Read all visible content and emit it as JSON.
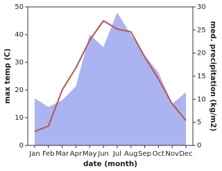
{
  "chart_data": {
    "type": "line-area",
    "categories": [
      "Jan",
      "Feb",
      "Mar",
      "Apr",
      "May",
      "Jun",
      "Jul",
      "Aug",
      "Sep",
      "Oct",
      "Nov",
      "Dec"
    ],
    "x_label": "date (month)",
    "y_label": "max temp (C)",
    "y2_label": "med. precipitation (kg/m2)",
    "ylim": [
      0,
      50
    ],
    "yticks": [
      0,
      10,
      20,
      30,
      40,
      50
    ],
    "y2lim": [
      0,
      30
    ],
    "y2ticks": [
      0,
      5,
      10,
      15,
      20,
      25,
      30
    ],
    "series": [
      {
        "name": "med. precipitation",
        "type": "area",
        "axis": "y2",
        "color": "#aab4f0",
        "values": [
          10.2,
          8.3,
          9.8,
          12.8,
          24,
          21.3,
          28.8,
          24,
          19.5,
          15.8,
          9,
          11.5
        ]
      },
      {
        "name": "max temp",
        "type": "line",
        "axis": "y",
        "color": "#c0504d",
        "values": [
          5,
          7,
          20,
          28,
          38,
          45,
          42,
          41,
          32,
          24,
          15,
          9
        ]
      }
    ]
  }
}
